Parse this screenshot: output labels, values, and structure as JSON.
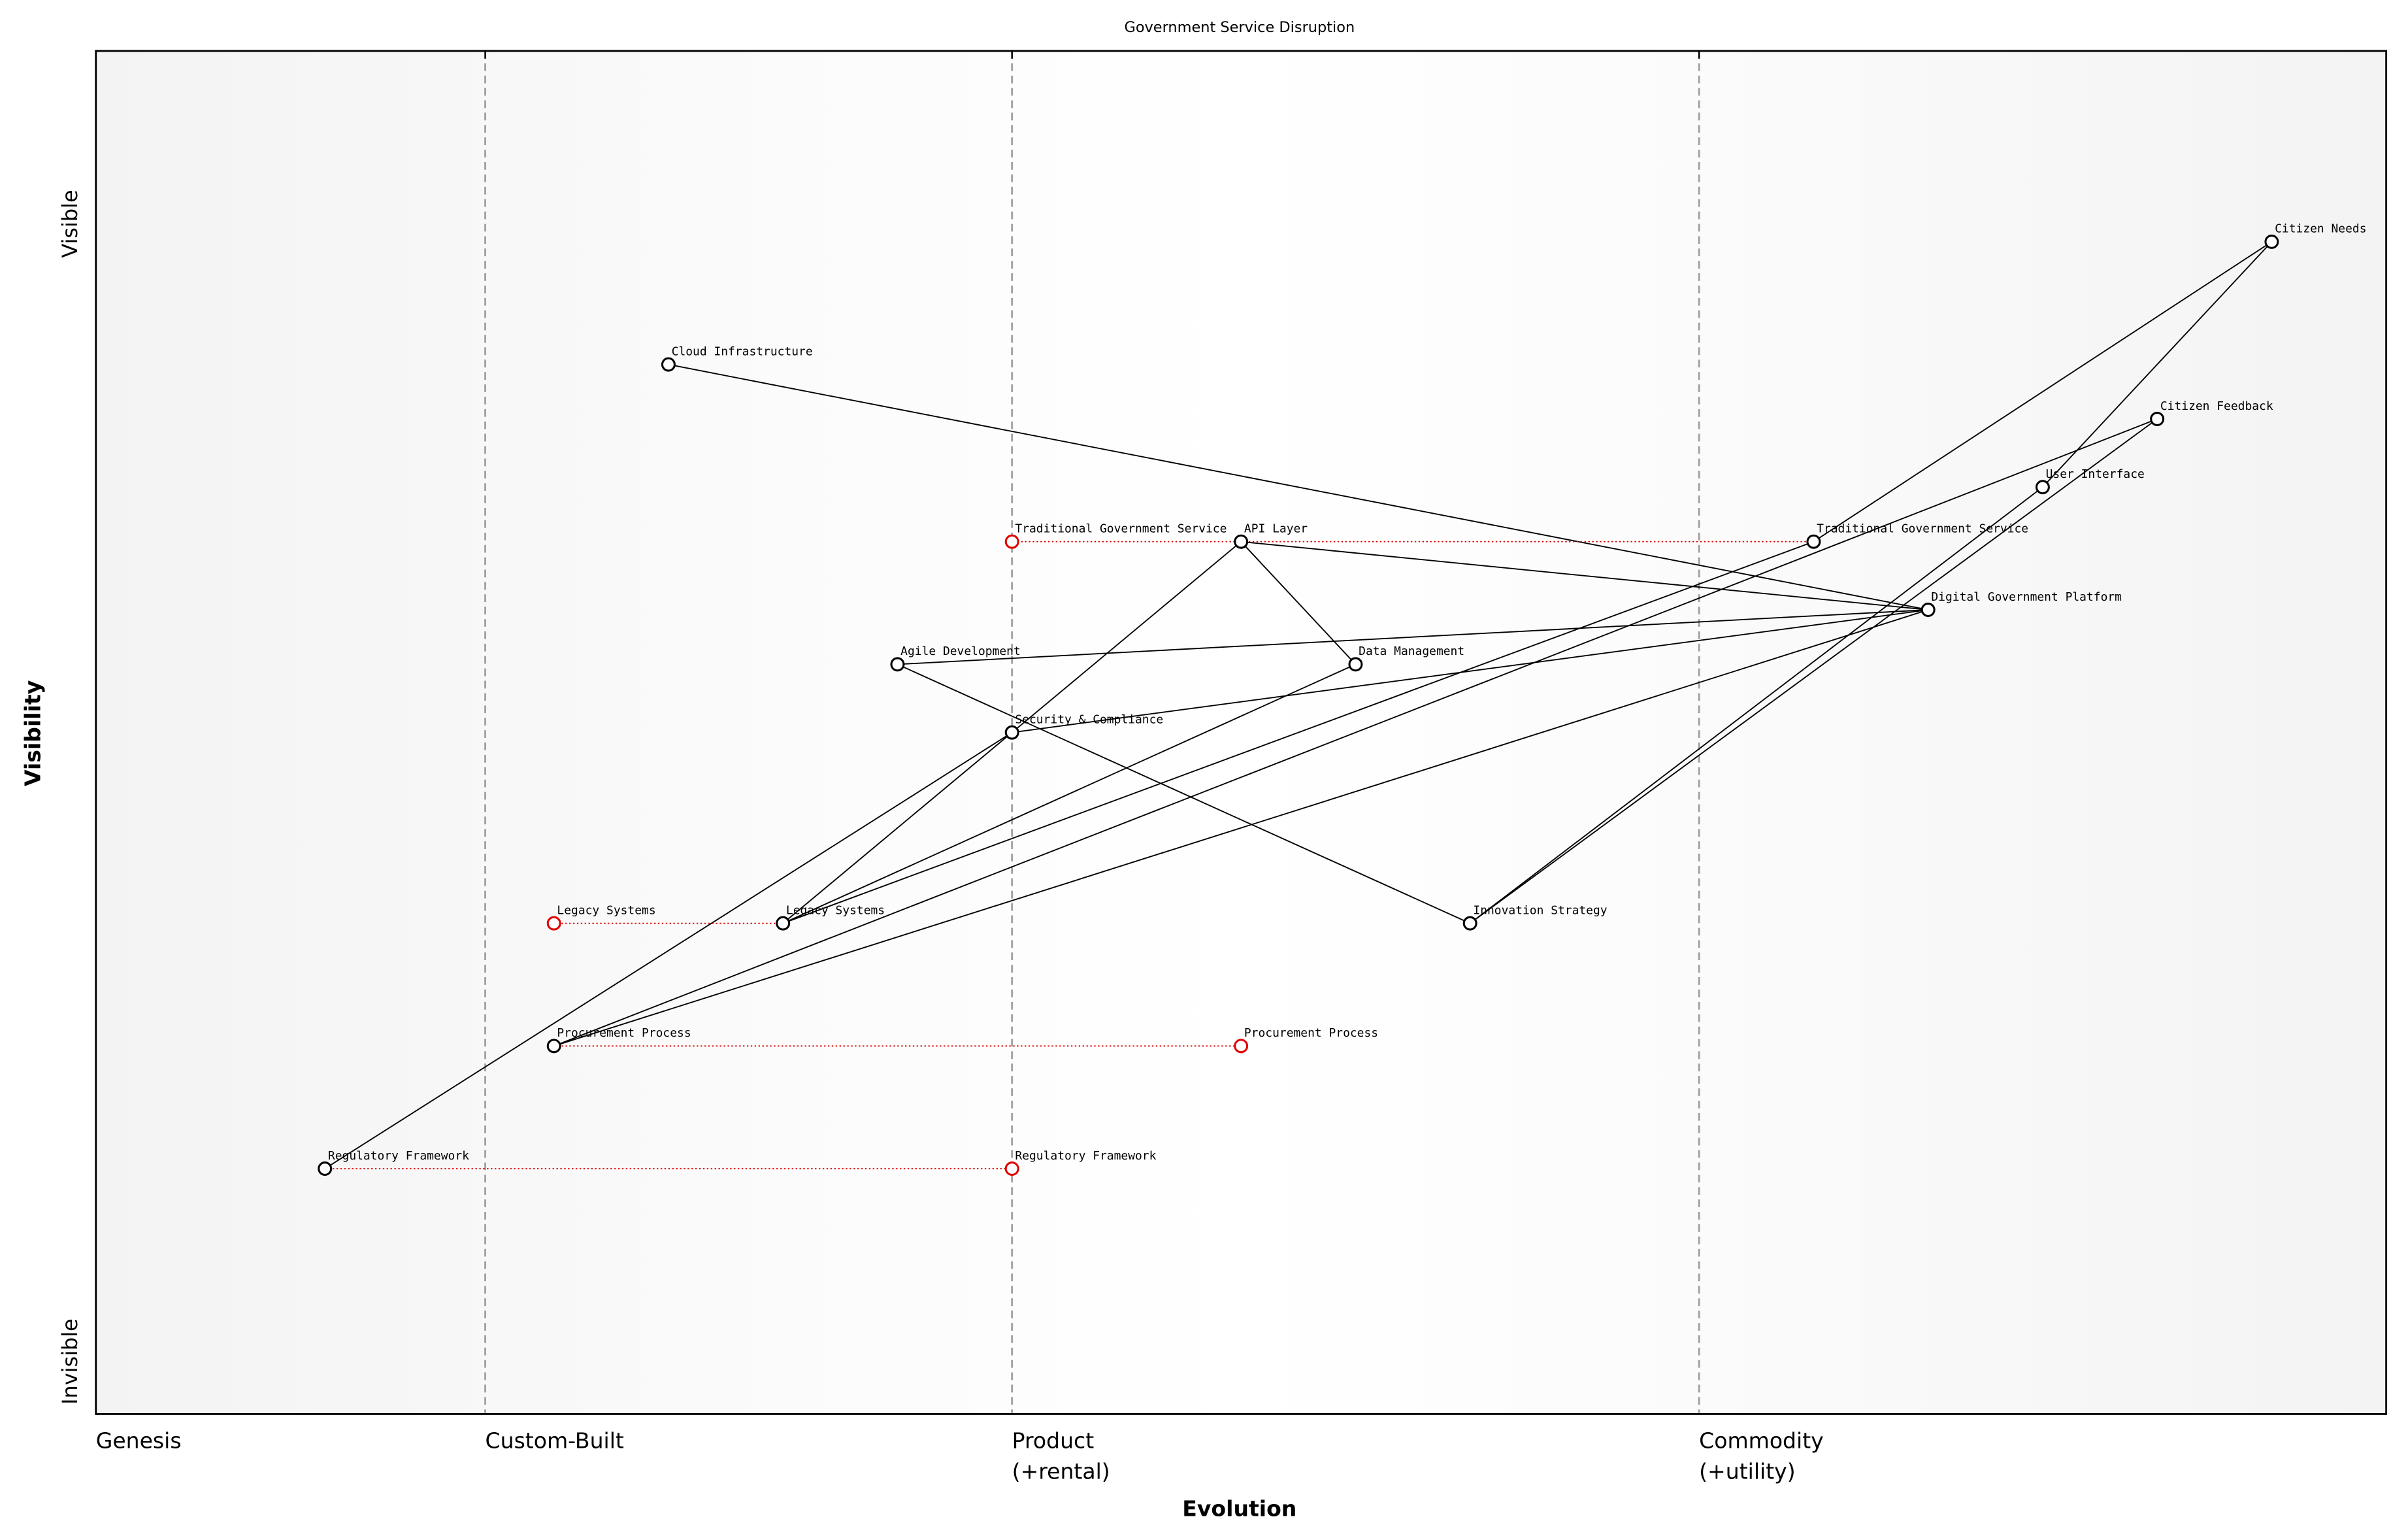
{
  "chart_data": {
    "type": "wardley",
    "title": "Government Service Disruption",
    "xlabel": "Evolution",
    "ylabel": "Visibility",
    "y_top_label": "Visible",
    "y_bottom_label": "Invisible",
    "xlim": [
      0,
      1
    ],
    "ylim": [
      0,
      1
    ],
    "xticks": [
      {
        "value": 0,
        "label": "Genesis"
      },
      {
        "value": 0.17,
        "label": "Custom-Built"
      },
      {
        "value": 0.4,
        "label": "Product\n(+rental)"
      },
      {
        "value": 0.7,
        "label": "Commodity\n(+utility)"
      }
    ],
    "nodes": [
      {
        "name": "Citizen Needs",
        "evolution": 0.95,
        "visibility": 0.86
      },
      {
        "name": "Citizen Feedback",
        "evolution": 0.9,
        "visibility": 0.73
      },
      {
        "name": "User Interface",
        "evolution": 0.85,
        "visibility": 0.68
      },
      {
        "name": "Traditional Government Service",
        "evolution": 0.75,
        "visibility": 0.64
      },
      {
        "name": "Digital Government Platform",
        "evolution": 0.8,
        "visibility": 0.59
      },
      {
        "name": "Cloud Infrastructure",
        "evolution": 0.25,
        "visibility": 0.77
      },
      {
        "name": "API Layer",
        "evolution": 0.5,
        "visibility": 0.64
      },
      {
        "name": "Data Management",
        "evolution": 0.55,
        "visibility": 0.55
      },
      {
        "name": "Agile Development",
        "evolution": 0.35,
        "visibility": 0.55
      },
      {
        "name": "Security & Compliance",
        "evolution": 0.4,
        "visibility": 0.5
      },
      {
        "name": "Legacy Systems",
        "evolution": 0.3,
        "visibility": 0.36
      },
      {
        "name": "Innovation Strategy",
        "evolution": 0.6,
        "visibility": 0.36
      },
      {
        "name": "Procurement Process",
        "evolution": 0.2,
        "visibility": 0.27
      },
      {
        "name": "Regulatory Framework",
        "evolution": 0.1,
        "visibility": 0.18
      }
    ],
    "evolved": [
      {
        "name": "Traditional Government Service",
        "evolution": 0.4,
        "visibility": 0.64
      },
      {
        "name": "Legacy Systems",
        "evolution": 0.2,
        "visibility": 0.36
      },
      {
        "name": "Procurement Process",
        "evolution": 0.5,
        "visibility": 0.27
      },
      {
        "name": "Regulatory Framework",
        "evolution": 0.4,
        "visibility": 0.18
      }
    ],
    "links": [
      [
        "Citizen Needs",
        "Traditional Government Service"
      ],
      [
        "Citizen Needs",
        "User Interface"
      ],
      [
        "User Interface",
        "Innovation Strategy"
      ],
      [
        "Citizen Feedback",
        "Innovation Strategy"
      ],
      [
        "Citizen Feedback",
        "Procurement Process"
      ],
      [
        "Cloud Infrastructure",
        "Digital Government Platform"
      ],
      [
        "API Layer",
        "Digital Government Platform"
      ],
      [
        "API Layer",
        "Data Management"
      ],
      [
        "API Layer",
        "Security & Compliance"
      ],
      [
        "Agile Development",
        "Digital Government Platform"
      ],
      [
        "Agile Development",
        "Innovation Strategy"
      ],
      [
        "Security & Compliance",
        "Digital Government Platform"
      ],
      [
        "Security & Compliance",
        "Regulatory Framework"
      ],
      [
        "Security & Compliance",
        "Legacy Systems"
      ],
      [
        "Legacy Systems",
        "Data Management"
      ],
      [
        "Legacy Systems",
        "Traditional Government Service"
      ],
      [
        "Procurement Process",
        "Digital Government Platform"
      ]
    ],
    "line_color": "#000000",
    "evolve_color": "#e00000"
  }
}
